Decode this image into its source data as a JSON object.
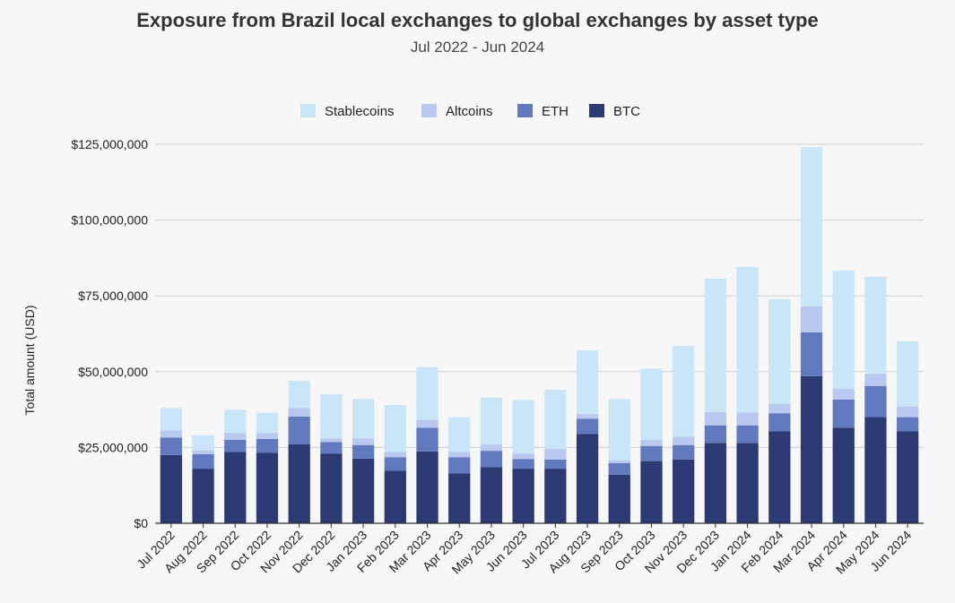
{
  "chart_data": {
    "type": "bar",
    "stacked": true,
    "title": "Exposure from Brazil local exchanges to global exchanges by asset type",
    "subtitle": "Jul 2022 - Jun 2024",
    "xlabel": "",
    "ylabel": "Total amount (USD)",
    "ylim": [
      0,
      125000000
    ],
    "yticks": [
      0,
      25000000,
      50000000,
      75000000,
      100000000,
      125000000
    ],
    "ytick_labels": [
      "$0",
      "$25,000,000",
      "$50,000,000",
      "$75,000,000",
      "$100,000,000",
      "$125,000,000"
    ],
    "grid": true,
    "legend_position": "top-center",
    "categories": [
      "Jul 2022",
      "Aug 2022",
      "Sep 2022",
      "Oct 2022",
      "Nov 2022",
      "Dec 2022",
      "Jan 2023",
      "Feb 2023",
      "Mar 2023",
      "Apr 2023",
      "May 2023",
      "Jun 2023",
      "Jul 2023",
      "Aug 2023",
      "Sep 2023",
      "Oct 2023",
      "Nov 2023",
      "Dec 2023",
      "Jan 2024",
      "Feb 2024",
      "Mar 2024",
      "Apr 2024",
      "May 2024",
      "Jun 2024"
    ],
    "series": [
      {
        "name": "BTC",
        "color": "#2b3a73",
        "values": [
          22500000,
          18000000,
          23500000,
          23300000,
          26000000,
          23000000,
          21300000,
          17300000,
          23700000,
          16400000,
          18500000,
          18000000,
          18000000,
          29500000,
          16000000,
          20500000,
          21000000,
          26500000,
          26500000,
          30300000,
          48500000,
          31500000,
          35000000,
          30300000
        ]
      },
      {
        "name": "ETH",
        "color": "#6179be",
        "values": [
          5800000,
          4800000,
          4000000,
          4500000,
          9200000,
          3800000,
          4500000,
          4500000,
          7800000,
          5400000,
          5400000,
          3200000,
          3000000,
          5000000,
          3800000,
          5000000,
          4800000,
          5800000,
          5800000,
          6000000,
          14500000,
          9300000,
          10300000,
          4700000
        ]
      },
      {
        "name": "Altcoins",
        "color": "#b9c8ee",
        "values": [
          2300000,
          1200000,
          2300000,
          2000000,
          2800000,
          1200000,
          2200000,
          1700000,
          2700000,
          1700000,
          2200000,
          1800000,
          3500000,
          1500000,
          1000000,
          2000000,
          2700000,
          4400000,
          4300000,
          3100000,
          8500000,
          3500000,
          4000000,
          3500000
        ]
      },
      {
        "name": "Stablecoins",
        "color": "#c8e6f7",
        "values": [
          7400000,
          5000000,
          7600000,
          6700000,
          9000000,
          14500000,
          13000000,
          15500000,
          17300000,
          11500000,
          15400000,
          17700000,
          19500000,
          21000000,
          20200000,
          23500000,
          30000000,
          44000000,
          48000000,
          34500000,
          52500000,
          39000000,
          32000000,
          21500000
        ]
      }
    ],
    "legend_order": [
      "Stablecoins",
      "Altcoins",
      "ETH",
      "BTC"
    ]
  }
}
